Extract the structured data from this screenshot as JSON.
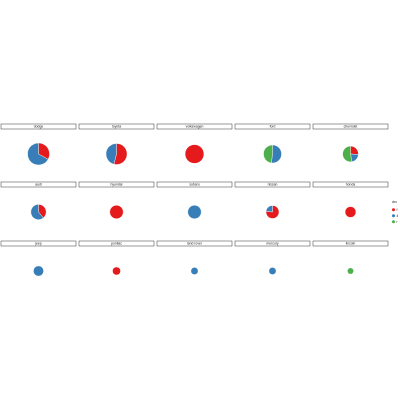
{
  "chart_data": {
    "type": "pie",
    "title": "",
    "facet_by": "manufacturer",
    "legend": {
      "title": "drv",
      "position": "right",
      "entries": [
        {
          "label": "f",
          "color": "#e41a1c"
        },
        {
          "label": "4",
          "color": "#377eb8"
        },
        {
          "label": "r",
          "color": "#4daf4a"
        }
      ]
    },
    "panels": [
      {
        "name": "dodge",
        "slices": {
          "f": 0.33,
          "4": 0.67,
          "r": 0
        }
      },
      {
        "name": "toyota",
        "slices": {
          "f": 0.54,
          "4": 0.46,
          "r": 0
        }
      },
      {
        "name": "volkswagen",
        "slices": {
          "f": 1.0,
          "4": 0,
          "r": 0
        }
      },
      {
        "name": "ford",
        "slices": {
          "f": 0,
          "4": 0.52,
          "r": 0.48
        }
      },
      {
        "name": "chevrolet",
        "slices": {
          "f": 0.26,
          "4": 0.21,
          "r": 0.53
        }
      },
      {
        "name": "audi",
        "slices": {
          "f": 0.39,
          "4": 0.61,
          "r": 0
        }
      },
      {
        "name": "hyundai",
        "slices": {
          "f": 1.0,
          "4": 0,
          "r": 0
        }
      },
      {
        "name": "subaru",
        "slices": {
          "f": 0,
          "4": 1.0,
          "r": 0
        }
      },
      {
        "name": "nissan",
        "slices": {
          "f": 0.77,
          "4": 0.23,
          "r": 0
        }
      },
      {
        "name": "honda",
        "slices": {
          "f": 1.0,
          "4": 0,
          "r": 0
        }
      },
      {
        "name": "jeep",
        "slices": {
          "f": 0,
          "4": 1.0,
          "r": 0
        }
      },
      {
        "name": "pontiac",
        "slices": {
          "f": 1.0,
          "4": 0,
          "r": 0
        }
      },
      {
        "name": "land rover",
        "slices": {
          "f": 0,
          "4": 1.0,
          "r": 0
        }
      },
      {
        "name": "mercury",
        "slices": {
          "f": 0,
          "4": 1.0,
          "r": 0
        }
      },
      {
        "name": "lincoln",
        "slices": {
          "f": 0,
          "4": 0,
          "r": 1.0
        }
      }
    ],
    "totals": [
      37,
      34,
      27,
      25,
      19,
      18,
      14,
      14,
      13,
      9,
      8,
      5,
      4,
      4,
      3
    ]
  }
}
